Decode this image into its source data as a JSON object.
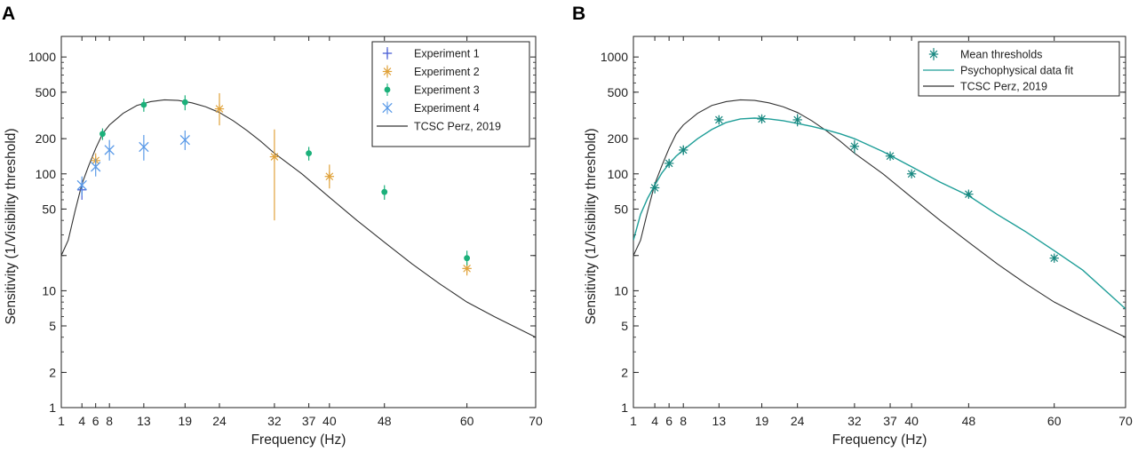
{
  "chart_data": [
    {
      "panel": "A",
      "type": "scatter",
      "xlabel": "Frequency (Hz)",
      "ylabel": "Sensitivity (1/Visibility threshold)",
      "xscale": "linear",
      "yscale": "log",
      "xlim": [
        1,
        70
      ],
      "ylim": [
        1,
        1500
      ],
      "xticks": [
        1,
        4,
        6,
        8,
        13,
        19,
        24,
        32,
        37,
        40,
        48,
        60,
        70
      ],
      "yticks": [
        1,
        2,
        5,
        10,
        20,
        50,
        100,
        200,
        500,
        1000
      ],
      "ytick_labels": [
        "1",
        "2",
        "5",
        "10",
        "",
        "50",
        "100",
        "200",
        "500",
        "1000"
      ],
      "legend_position": "top-right",
      "series": [
        {
          "name": "Experiment 1",
          "marker": "plus",
          "color": "#4b5fd6",
          "x": [
            4
          ],
          "y": [
            73
          ],
          "yerr_low": [
            60
          ],
          "yerr_high": [
            88
          ]
        },
        {
          "name": "Experiment 2",
          "marker": "asterisk",
          "color": "#e0a23a",
          "x": [
            6,
            24,
            32,
            40,
            60
          ],
          "y": [
            130,
            360,
            140,
            95,
            15.5
          ],
          "yerr_low": [
            110,
            260,
            40,
            75,
            13.5
          ],
          "yerr_high": [
            150,
            490,
            240,
            120,
            17.5
          ]
        },
        {
          "name": "Experiment 3",
          "marker": "dot",
          "color": "#1bb07a",
          "x": [
            7,
            13,
            19,
            37,
            48,
            60
          ],
          "y": [
            220,
            390,
            410,
            150,
            70,
            19
          ],
          "yerr_low": [
            195,
            340,
            350,
            130,
            60,
            16.5
          ],
          "yerr_high": [
            245,
            440,
            470,
            170,
            80,
            22
          ]
        },
        {
          "name": "Experiment 4",
          "marker": "cross",
          "color": "#5a9ae8",
          "x": [
            4,
            6,
            8,
            13,
            19
          ],
          "y": [
            80,
            115,
            160,
            170,
            195
          ],
          "yerr_low": [
            65,
            95,
            130,
            130,
            160
          ],
          "yerr_high": [
            95,
            135,
            195,
            215,
            235
          ]
        },
        {
          "name": "TCSC Perz, 2019",
          "marker": "line",
          "color": "#333333",
          "curve": "tcsc"
        }
      ],
      "curves": {
        "tcsc": {
          "x": [
            1,
            2,
            3,
            4,
            5,
            6,
            7,
            8,
            10,
            12,
            14,
            16,
            18,
            20,
            22,
            24,
            26,
            28,
            30,
            32,
            36,
            40,
            44,
            48,
            52,
            56,
            60,
            64,
            70
          ],
          "y": [
            20,
            27,
            48,
            82,
            118,
            165,
            220,
            262,
            330,
            385,
            415,
            430,
            425,
            405,
            375,
            335,
            285,
            235,
            190,
            150,
            100,
            63,
            40,
            26,
            17,
            11.5,
            8,
            6,
            4
          ]
        }
      }
    },
    {
      "panel": "B",
      "type": "scatter",
      "xlabel": "Frequency (Hz)",
      "ylabel": "Sensitivity (1/Visibility threshold)",
      "xscale": "linear",
      "yscale": "log",
      "xlim": [
        1,
        70
      ],
      "ylim": [
        1,
        1500
      ],
      "xticks": [
        1,
        4,
        6,
        8,
        13,
        19,
        24,
        32,
        37,
        40,
        48,
        60,
        70
      ],
      "yticks": [
        1,
        2,
        5,
        10,
        20,
        50,
        100,
        200,
        500,
        1000
      ],
      "ytick_labels": [
        "1",
        "2",
        "5",
        "10",
        "",
        "50",
        "100",
        "200",
        "500",
        "1000"
      ],
      "legend_position": "top-right",
      "series": [
        {
          "name": "Mean thresholds",
          "marker": "asterisk",
          "color": "#17877f",
          "x": [
            4,
            6,
            8,
            13,
            19,
            24,
            32,
            37,
            40,
            48,
            60
          ],
          "y": [
            76,
            123,
            160,
            290,
            295,
            290,
            172,
            142,
            100,
            67,
            19
          ],
          "yerr_low": [
            68,
            113,
            145,
            265,
            275,
            255,
            150,
            134,
            94,
            63,
            18
          ],
          "yerr_high": [
            85,
            133,
            175,
            315,
            315,
            325,
            195,
            150,
            106,
            71,
            20
          ]
        },
        {
          "name": "Psychophysical data fit",
          "marker": "line",
          "color": "#1f9e98",
          "curve": "fit"
        },
        {
          "name": "TCSC Perz, 2019",
          "marker": "line",
          "color": "#333333",
          "curve": "tcsc"
        }
      ],
      "curves": {
        "fit": {
          "x": [
            1,
            2,
            3,
            4,
            5,
            6,
            7,
            8,
            10,
            12,
            14,
            16,
            18,
            20,
            22,
            24,
            26,
            28,
            30,
            32,
            36,
            40,
            44,
            48,
            52,
            56,
            60,
            64,
            70
          ],
          "y": [
            27,
            45,
            62,
            80,
            102,
            122,
            142,
            160,
            200,
            240,
            275,
            295,
            300,
            295,
            285,
            270,
            255,
            238,
            220,
            200,
            155,
            115,
            85,
            65,
            45,
            32,
            22,
            15,
            7
          ]
        },
        "tcsc": {
          "x": [
            1,
            2,
            3,
            4,
            5,
            6,
            7,
            8,
            10,
            12,
            14,
            16,
            18,
            20,
            22,
            24,
            26,
            28,
            30,
            32,
            36,
            40,
            44,
            48,
            52,
            56,
            60,
            64,
            70
          ],
          "y": [
            20,
            27,
            48,
            82,
            118,
            165,
            220,
            262,
            330,
            385,
            415,
            430,
            425,
            405,
            375,
            335,
            285,
            235,
            190,
            150,
            100,
            63,
            40,
            26,
            17,
            11.5,
            8,
            6,
            4
          ]
        }
      }
    }
  ]
}
